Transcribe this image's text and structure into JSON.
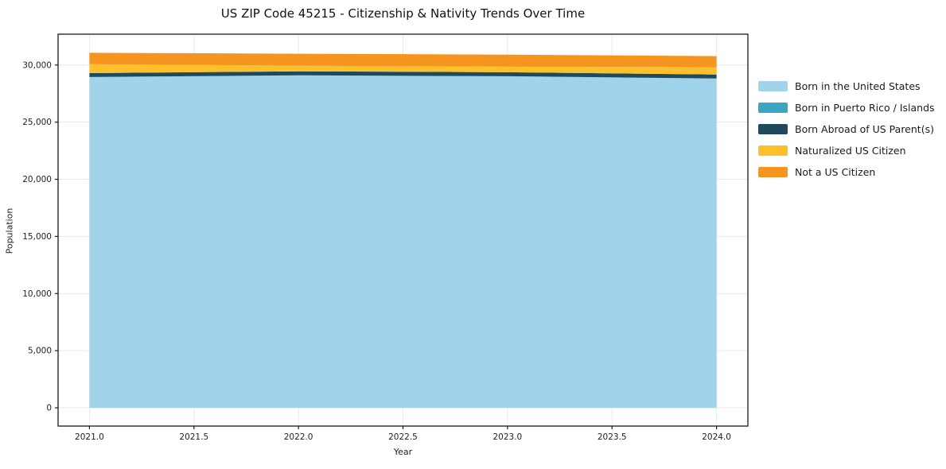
{
  "chart_data": {
    "type": "area",
    "stacked": true,
    "title": "US ZIP Code 45215 - Citizenship & Nativity Trends Over Time",
    "xlabel": "Year",
    "ylabel": "Population",
    "x": [
      2021,
      2022,
      2023,
      2024
    ],
    "series": [
      {
        "name": "Born in the United States",
        "color": "#A1D3EA",
        "values": [
          28950,
          29100,
          29020,
          28820
        ]
      },
      {
        "name": "Born in Puerto Rico / Islands",
        "color": "#3EA4C3",
        "values": [
          0,
          0,
          0,
          0
        ]
      },
      {
        "name": "Born Abroad of US Parent(s)",
        "color": "#1F4A5E",
        "values": [
          340,
          350,
          350,
          350
        ]
      },
      {
        "name": "Naturalized US Citizen",
        "color": "#FCC02D",
        "values": [
          780,
          490,
          490,
          640
        ]
      },
      {
        "name": "Not a US Citizen",
        "color": "#F5941E",
        "values": [
          1000,
          1050,
          1050,
          970
        ]
      }
    ],
    "xlim": [
      2020.85,
      2024.15
    ],
    "ylim": [
      -1600,
      32700
    ],
    "xticks": {
      "values": [
        2021,
        2021.5,
        2022,
        2022.5,
        2023,
        2023.5,
        2024
      ],
      "labels": [
        "2021.0",
        "2021.5",
        "2022.0",
        "2022.5",
        "2023.0",
        "2023.5",
        "2024.0"
      ]
    },
    "yticks": {
      "values": [
        0,
        5000,
        10000,
        15000,
        20000,
        25000,
        30000
      ],
      "labels": [
        "0",
        "5,000",
        "10,000",
        "15,000",
        "20,000",
        "25,000",
        "30,000"
      ]
    },
    "grid": true,
    "grid_color": "#e9e9e9",
    "frame_color": "#1a1a1a",
    "tick_label_color": "#222222",
    "legend_position": "right"
  }
}
